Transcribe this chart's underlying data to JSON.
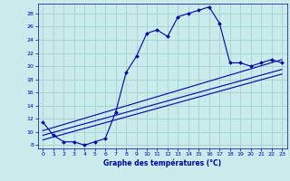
{
  "xlabel": "Graphe des températures (°C)",
  "bg_color": "#c8ecec",
  "line_color": "#0000aa",
  "grid_color": "#aad4d4",
  "xlim": [
    -0.5,
    23.5
  ],
  "ylim": [
    7.5,
    29.5
  ],
  "yticks": [
    8,
    10,
    12,
    14,
    16,
    18,
    20,
    22,
    24,
    26,
    28
  ],
  "xticks": [
    0,
    1,
    2,
    3,
    4,
    5,
    6,
    7,
    8,
    9,
    10,
    11,
    12,
    13,
    14,
    15,
    16,
    17,
    18,
    19,
    20,
    21,
    22,
    23
  ],
  "main_x": [
    0,
    1,
    2,
    3,
    4,
    5,
    6,
    7,
    8,
    9,
    10,
    11,
    12,
    13,
    14,
    15,
    16,
    17,
    18,
    19,
    20,
    21,
    22,
    23
  ],
  "main_y": [
    11.5,
    9.5,
    8.5,
    8.5,
    8.0,
    8.5,
    9.0,
    13.0,
    19.0,
    21.5,
    25.0,
    25.5,
    24.5,
    27.5,
    28.0,
    28.5,
    29.0,
    26.5,
    20.5,
    20.5,
    20.0,
    20.5,
    21.0,
    20.5
  ],
  "line2_x": [
    0,
    23
  ],
  "line2_y": [
    9.5,
    19.5
  ],
  "line3_x": [
    0,
    23
  ],
  "line3_y": [
    8.8,
    18.8
  ],
  "line4_x": [
    0,
    23
  ],
  "line4_y": [
    10.2,
    21.0
  ]
}
